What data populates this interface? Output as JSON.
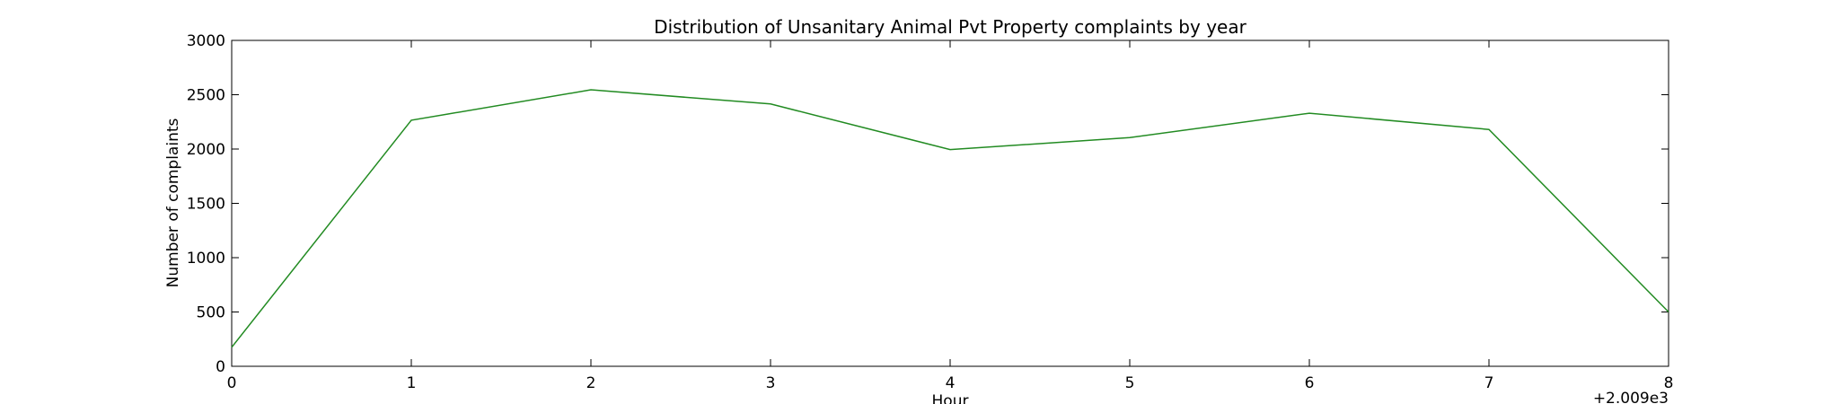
{
  "chart_data": {
    "type": "line",
    "title": "Distribution of  Unsanitary Animal Pvt Property complaints by year",
    "xlabel": "Hour",
    "ylabel": "Number of complaints",
    "x_offset_label": "+2.009e3",
    "x": [
      0,
      1,
      2,
      3,
      4,
      5,
      6,
      7,
      8
    ],
    "xlim": [
      0,
      8
    ],
    "ylim": [
      0,
      3000
    ],
    "x_ticks": [
      0,
      1,
      2,
      3,
      4,
      5,
      6,
      7,
      8
    ],
    "y_ticks": [
      0,
      500,
      1000,
      1500,
      2000,
      2500,
      3000
    ],
    "series": [
      {
        "values": [
          175,
          2265,
          2545,
          2415,
          1995,
          2105,
          2330,
          2180,
          500
        ],
        "color": "#228b22"
      }
    ],
    "grid": false,
    "legend": "none"
  }
}
